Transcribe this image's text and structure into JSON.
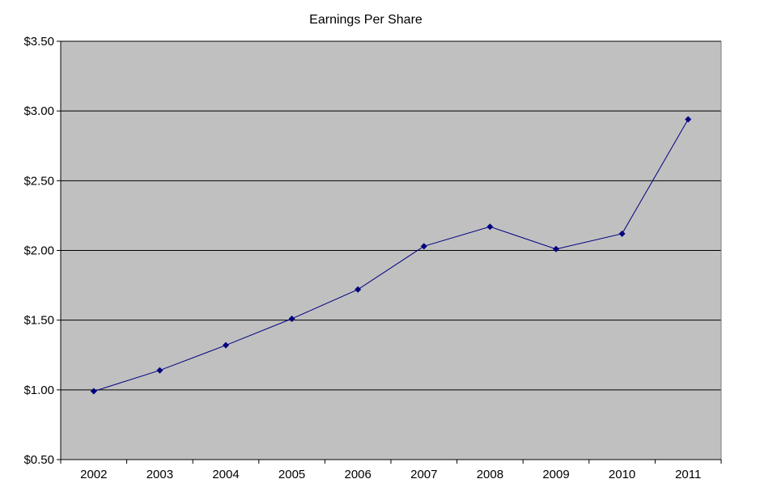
{
  "chart_data": {
    "type": "line",
    "title": "Earnings Per Share",
    "xlabel": "",
    "ylabel": "",
    "categories": [
      "2002",
      "2003",
      "2004",
      "2005",
      "2006",
      "2007",
      "2008",
      "2009",
      "2010",
      "2011"
    ],
    "series": [
      {
        "values": [
          0.99,
          1.14,
          1.32,
          1.51,
          1.72,
          2.03,
          2.17,
          2.01,
          2.12,
          2.94
        ]
      }
    ],
    "ylim": [
      0.5,
      3.5
    ],
    "yticks": [
      0.5,
      1.0,
      1.5,
      2.0,
      2.5,
      3.0,
      3.5
    ],
    "ytick_labels": [
      "$0.50",
      "$1.00",
      "$1.50",
      "$2.00",
      "$2.50",
      "$3.00",
      "$3.50"
    ],
    "grid": "horizontal",
    "legend": "none",
    "colors": {
      "plot_background": "#c0c0c0",
      "line": "#000080",
      "marker": "#000080",
      "grid": "#000000"
    }
  }
}
